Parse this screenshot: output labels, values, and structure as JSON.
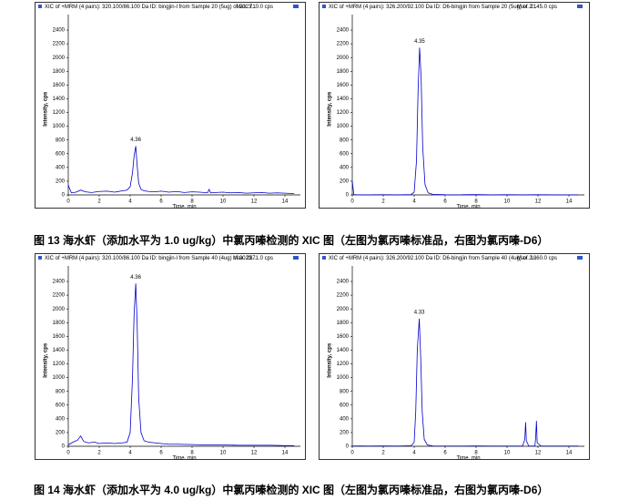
{
  "chart_data": [
    {
      "type": "line",
      "header": "XIC of +MRM (4 pairs): 320.100/86.100 Da ID: bingjin-l from Sample 20 (5ug) of 2023...",
      "max_label": "Max. 710.0 cps",
      "peak_label": "4.36",
      "xlabel": "Time, min",
      "ylabel": "Intensity, cps",
      "color": "#0000cc",
      "x": [
        0,
        0.2,
        0.5,
        0.8,
        1.1,
        1.5,
        2,
        2.5,
        3,
        3.5,
        3.8,
        4.0,
        4.15,
        4.25,
        4.36,
        4.45,
        4.55,
        4.7,
        4.9,
        5.2,
        5.6,
        6,
        6.5,
        7,
        7.5,
        8,
        8.5,
        9,
        9.1,
        9.2,
        9.5,
        10,
        10.5,
        11,
        11.5,
        12,
        12.5,
        13,
        13.5,
        14,
        14.6
      ],
      "values": [
        140,
        30,
        40,
        70,
        45,
        35,
        50,
        55,
        40,
        60,
        70,
        120,
        320,
        560,
        710,
        430,
        170,
        80,
        60,
        50,
        45,
        55,
        40,
        50,
        35,
        45,
        40,
        30,
        80,
        30,
        35,
        40,
        30,
        35,
        25,
        30,
        35,
        25,
        30,
        25,
        20
      ],
      "xlim": [
        0,
        15
      ],
      "ylim": [
        0,
        2500
      ],
      "xticks": [
        0,
        2,
        4,
        6,
        8,
        10,
        12,
        14
      ],
      "yticks": [
        0,
        200,
        400,
        600,
        800,
        1000,
        1200,
        1400,
        1600,
        1800,
        2000,
        2200,
        2400
      ]
    },
    {
      "type": "line",
      "header": "XIC of +MRM (4 pairs): 326.200/92.100 Da ID: D6-bingjin from Sample 20 (5ug) of 2...",
      "max_label": "Max. 2145.0 cps",
      "peak_label": "4.35",
      "xlabel": "Time, min",
      "ylabel": "Intensity, cps",
      "color": "#0000cc",
      "x": [
        0,
        0.1,
        0.3,
        1,
        2,
        3,
        3.8,
        4.0,
        4.15,
        4.25,
        4.35,
        4.45,
        4.55,
        4.7,
        4.9,
        5.2,
        6,
        7,
        8,
        9,
        10,
        11,
        12,
        13,
        14,
        14.6
      ],
      "values": [
        200,
        5,
        3,
        2,
        3,
        2,
        5,
        40,
        500,
        1500,
        2145,
        1700,
        700,
        150,
        30,
        8,
        3,
        2,
        4,
        2,
        3,
        2,
        3,
        2,
        2,
        2
      ],
      "xlim": [
        0,
        15
      ],
      "ylim": [
        0,
        2500
      ],
      "xticks": [
        0,
        2,
        4,
        6,
        8,
        10,
        12,
        14
      ],
      "yticks": [
        0,
        200,
        400,
        600,
        800,
        1000,
        1200,
        1400,
        1600,
        1800,
        2000,
        2200,
        2400
      ]
    },
    {
      "type": "line",
      "header": "XIC of +MRM (4 pairs): 320.100/86.100 Da ID: bingjin-l from Sample 40 (4ug) of 2023...",
      "max_label": "Max. 2371.0 cps",
      "peak_label": "4.36",
      "xlabel": "Time, min",
      "ylabel": "Intensity, cps",
      "color": "#0000cc",
      "x": [
        0,
        0.3,
        0.6,
        0.8,
        1,
        1.3,
        1.7,
        2,
        2.5,
        3,
        3.5,
        3.8,
        4.0,
        4.15,
        4.25,
        4.36,
        4.45,
        4.55,
        4.7,
        4.9,
        5.2,
        5.6,
        6,
        6.5,
        7,
        8,
        9,
        10,
        11,
        12,
        13,
        14,
        14.6
      ],
      "values": [
        20,
        60,
        90,
        150,
        70,
        50,
        60,
        40,
        50,
        40,
        50,
        60,
        200,
        1000,
        1900,
        2371,
        1800,
        700,
        200,
        80,
        60,
        50,
        40,
        30,
        30,
        25,
        20,
        20,
        15,
        15,
        15,
        10,
        10
      ],
      "xlim": [
        0,
        15
      ],
      "ylim": [
        0,
        2500
      ],
      "xticks": [
        0,
        2,
        4,
        6,
        8,
        10,
        12,
        14
      ],
      "yticks": [
        0,
        200,
        400,
        600,
        800,
        1000,
        1200,
        1400,
        1600,
        1800,
        2000,
        2200,
        2400
      ]
    },
    {
      "type": "line",
      "header": "XIC of +MRM (4 pairs): 326.200/92.100 Da ID: D6-bingjin from Sample 40 (4ug) of 2...",
      "max_label": "Max. 1860.0 cps",
      "peak_label": "4.33",
      "xlabel": "Time, min",
      "ylabel": "Intensity, cps",
      "color": "#0000cc",
      "x": [
        0,
        0.5,
        1,
        2,
        3,
        3.8,
        4.0,
        4.1,
        4.2,
        4.33,
        4.42,
        4.52,
        4.65,
        4.85,
        5.2,
        6,
        7,
        8,
        9,
        10,
        11,
        11.15,
        11.2,
        11.25,
        11.4,
        11.8,
        11.85,
        11.9,
        11.95,
        12.2,
        13,
        14,
        14.6
      ],
      "values": [
        3,
        5,
        3,
        4,
        3,
        8,
        60,
        500,
        1400,
        1860,
        1300,
        500,
        100,
        20,
        5,
        3,
        3,
        4,
        3,
        3,
        3,
        100,
        350,
        80,
        3,
        3,
        120,
        370,
        50,
        3,
        3,
        3,
        3
      ],
      "xlim": [
        0,
        15
      ],
      "ylim": [
        0,
        2500
      ],
      "xticks": [
        0,
        2,
        4,
        6,
        8,
        10,
        12,
        14
      ],
      "yticks": [
        0,
        200,
        400,
        600,
        800,
        1000,
        1200,
        1400,
        1600,
        1800,
        2000,
        2200,
        2400
      ]
    }
  ],
  "captions": [
    "图 13 海水虾（添加水平为 1.0 ug/kg）中氯丙嗪检测的 XIC 图（左图为氯丙嗪标准品，右图为氯丙嗪-D6）",
    "图 14 海水虾（添加水平为 4.0 ug/kg）中氯丙嗪检测的 XIC 图（左图为氯丙嗪标准品，右图为氯丙嗪-D6）"
  ]
}
